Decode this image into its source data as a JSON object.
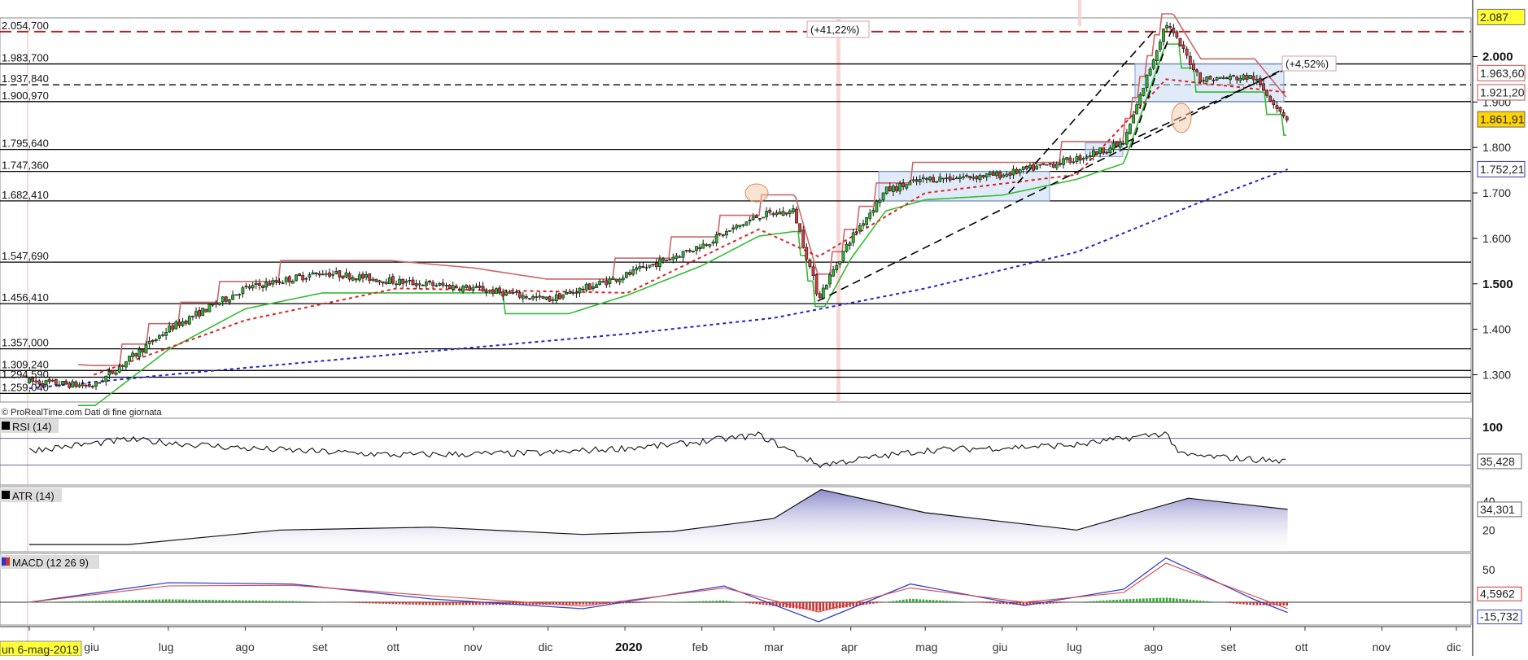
{
  "chart_data": [
    {
      "type": "candlestick",
      "title": "",
      "y_scale_labels": [
        "2.000",
        "1.900",
        "1.800",
        "1.700",
        "1.600",
        "1.500",
        "1.400",
        "1.300"
      ],
      "y_scale_values": [
        2000,
        1900,
        1800,
        1700,
        1600,
        1500,
        1400,
        1300
      ],
      "ylim": [
        1240,
        2085
      ],
      "x_labels": [
        "un 6-mag-2019",
        "giu",
        "lug",
        "ago",
        "set",
        "ott",
        "nov",
        "dic",
        "2020",
        "feb",
        "mar",
        "apr",
        "mag",
        "giu",
        "lug",
        "ago",
        "set",
        "ott",
        "nov",
        "dic"
      ],
      "horizontal_levels": [
        {
          "value": 2054.7,
          "label": "2.054,700",
          "style": "dash",
          "color": "#b22222"
        },
        {
          "value": 1983.7,
          "label": "1.983,700",
          "style": "solid",
          "color": "#000000"
        },
        {
          "value": 1937.84,
          "label": "1.937,840",
          "style": "dash",
          "color": "#000000"
        },
        {
          "value": 1900.97,
          "label": "1.900,970",
          "style": "solid",
          "color": "#000000"
        },
        {
          "value": 1795.64,
          "label": "1.795,640",
          "style": "solid",
          "color": "#000000"
        },
        {
          "value": 1747.36,
          "label": "1.747,360",
          "style": "solid",
          "color": "#000000"
        },
        {
          "value": 1682.41,
          "label": "1.682,410",
          "style": "solid",
          "color": "#000000"
        },
        {
          "value": 1547.69,
          "label": "1.547,690",
          "style": "solid",
          "color": "#000000"
        },
        {
          "value": 1456.41,
          "label": "1.456,410",
          "style": "solid",
          "color": "#000000"
        },
        {
          "value": 1357.0,
          "label": "1.357,000",
          "style": "solid",
          "color": "#000000"
        },
        {
          "value": 1309.24,
          "label": "1.309,240",
          "style": "solid",
          "color": "#000000"
        },
        {
          "value": 1294.59,
          "label": "1.294,590",
          "style": "solid",
          "color": "#000000"
        },
        {
          "value": 1259.04,
          "label": "1.259,040",
          "style": "solid",
          "color": "#000000"
        }
      ],
      "value_badges": [
        {
          "label": "2.087",
          "value": 2087,
          "bg": "#ffff33",
          "fg": "#000000"
        },
        {
          "label": "1.963,60",
          "value": 1963.6,
          "bg": "#ffffff",
          "fg": "#c0504d"
        },
        {
          "label": "1.921,20",
          "value": 1921.2,
          "bg": "#ffffff",
          "fg": "#c0504d"
        },
        {
          "label": "1.861,91",
          "value": 1861.91,
          "bg": "#ffd400",
          "fg": "#000000"
        },
        {
          "label": "1.752,21",
          "value": 1752.21,
          "bg": "#ffffff",
          "fg": "#3333aa"
        }
      ],
      "annotations": [
        "(+41,22%)",
        "(+4,52%)"
      ],
      "footer": "© ProRealTime.com  Dati di fine giornata",
      "series": [
        {
          "name": "price",
          "x": [
            "2019-05-06",
            "2019-06-01",
            "2019-07-01",
            "2019-08-01",
            "2019-09-01",
            "2019-10-01",
            "2019-11-01",
            "2019-12-01",
            "2020-01-02",
            "2020-02-01",
            "2020-02-24",
            "2020-03-09",
            "2020-03-19",
            "2020-04-01",
            "2020-04-15",
            "2020-05-01",
            "2020-06-01",
            "2020-07-01",
            "2020-07-20",
            "2020-08-06",
            "2020-08-20",
            "2020-09-10",
            "2020-09-24"
          ],
          "y": [
            1285,
            1275,
            1400,
            1490,
            1525,
            1505,
            1490,
            1465,
            1520,
            1585,
            1650,
            1660,
            1470,
            1600,
            1705,
            1730,
            1740,
            1775,
            1810,
            2075,
            1950,
            1955,
            1862
          ]
        },
        {
          "name": "SMA200",
          "color": "#2222cc",
          "x": [
            "2019-05-06",
            "2019-07-01",
            "2019-10-01",
            "2020-01-02",
            "2020-03-01",
            "2020-05-01",
            "2020-07-01",
            "2020-08-20",
            "2020-09-24"
          ],
          "y": [
            1270,
            1300,
            1345,
            1390,
            1425,
            1490,
            1570,
            1680,
            1752
          ]
        },
        {
          "name": "SMA20",
          "color": "#dd2222",
          "x": [
            "2019-06-01",
            "2019-08-01",
            "2019-10-01",
            "2020-01-02",
            "2020-02-24",
            "2020-03-19",
            "2020-05-01",
            "2020-07-01",
            "2020-08-06",
            "2020-09-24"
          ],
          "y": [
            1300,
            1420,
            1490,
            1480,
            1620,
            1560,
            1700,
            1740,
            1950,
            1921
          ]
        }
      ]
    },
    {
      "type": "line",
      "title": "RSI (14)",
      "scale_top_label": "100",
      "last_label": "35,428",
      "last_value": 35.428,
      "ylim": [
        0,
        100
      ],
      "levels": [
        70,
        30
      ],
      "x": [
        "2019-05-06",
        "2019-06-15",
        "2019-08-01",
        "2019-10-01",
        "2019-12-01",
        "2020-01-20",
        "2020-02-24",
        "2020-03-19",
        "2020-05-01",
        "2020-07-01",
        "2020-08-06",
        "2020-08-12",
        "2020-09-24"
      ],
      "y": [
        52,
        68,
        55,
        45,
        48,
        60,
        75,
        30,
        52,
        60,
        78,
        45,
        35.4
      ]
    },
    {
      "type": "area",
      "title": "ATR (14)",
      "scale_labels": [
        "40",
        "20"
      ],
      "scale_values": [
        40,
        20
      ],
      "last_label": "34,301",
      "last_value": 34.301,
      "ylim": [
        5,
        50
      ],
      "x": [
        "2019-05-06",
        "2019-06-15",
        "2019-08-15",
        "2019-10-15",
        "2019-12-15",
        "2020-01-20",
        "2020-03-01",
        "2020-03-20",
        "2020-05-01",
        "2020-07-01",
        "2020-08-15",
        "2020-09-24"
      ],
      "y": [
        10,
        10,
        20,
        22,
        17,
        19,
        28,
        48,
        32,
        20,
        42,
        34.3
      ]
    },
    {
      "type": "macd",
      "title": "MACD (12 26 9)",
      "scale_labels": [
        "50"
      ],
      "scale_values": [
        50
      ],
      "last_labels": [
        "4,5962",
        "-15,732"
      ],
      "last_values": [
        4.5962,
        -15.732
      ],
      "ylim": [
        -35,
        75
      ],
      "x": [
        "2019-05-06",
        "2019-07-01",
        "2019-08-20",
        "2019-10-15",
        "2019-12-15",
        "2020-02-10",
        "2020-03-19",
        "2020-04-25",
        "2020-06-10",
        "2020-07-20",
        "2020-08-06",
        "2020-09-10",
        "2020-09-24"
      ],
      "macd": [
        0,
        30,
        28,
        5,
        -10,
        25,
        -30,
        28,
        -5,
        20,
        68,
        5,
        -15.7
      ],
      "signal": [
        0,
        25,
        26,
        10,
        -6,
        22,
        -15,
        22,
        0,
        15,
        60,
        10,
        -10
      ]
    }
  ]
}
